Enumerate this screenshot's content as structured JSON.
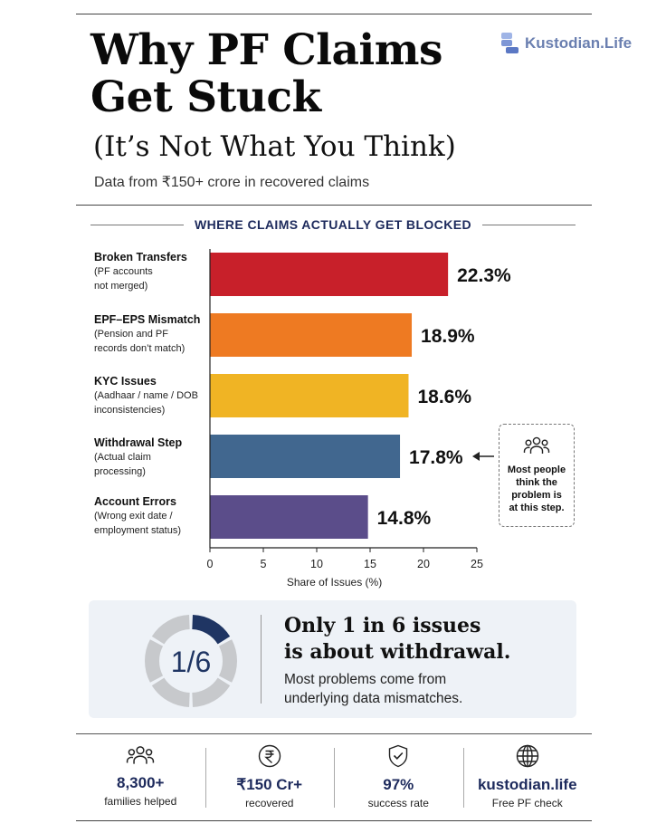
{
  "header": {
    "title_line1": "Why PF Claims",
    "title_line2": "Get Stuck",
    "subtitle": "(It’s Not What You Think)",
    "tagline": "Data from ₹150+ crore in recovered claims",
    "brand": "Kustodian.Life"
  },
  "section_title": "WHERE CLAIMS ACTUALLY GET BLOCKED",
  "chart_data": {
    "type": "bar",
    "orientation": "horizontal",
    "categories": [
      "Broken Transfers",
      "EPF–EPS Mismatch",
      "KYC Issues",
      "Withdrawal Step",
      "Account Errors"
    ],
    "descriptions": [
      [
        "(PF accounts",
        "not merged)"
      ],
      [
        "(Pension and PF",
        "records don’t match)"
      ],
      [
        "(Aadhaar / name / DOB",
        "inconsistencies)"
      ],
      [
        "(Actual claim",
        "processing)"
      ],
      [
        "(Wrong exit date /",
        "employment status)"
      ]
    ],
    "values": [
      22.3,
      18.9,
      18.6,
      17.8,
      14.8
    ],
    "data_labels": [
      "22.3%",
      "18.9%",
      "18.6%",
      "17.8%",
      "14.8%"
    ],
    "colors": [
      "#c8202a",
      "#ee7a22",
      "#f0b424",
      "#41678f",
      "#5b4d8a"
    ],
    "xlabel": "Share of Issues (%)",
    "xticks": [
      0,
      5,
      10,
      15,
      20,
      25
    ],
    "xlim": [
      0,
      25
    ],
    "grid": false
  },
  "callout": {
    "icon": "people-icon",
    "lines": [
      "Most people",
      "think the",
      "problem is",
      "at this step."
    ]
  },
  "stat": {
    "fraction": "1/6",
    "highlight_fraction": 0.1667,
    "headline_line1": "Only 1 in 6 issues",
    "headline_line2": "is about withdrawal.",
    "sub_line1": "Most problems come from",
    "sub_line2": "underlying data mismatches.",
    "color_highlight": "#1f3563",
    "color_rest": "#c7c9cc"
  },
  "footer": [
    {
      "icon": "people-icon",
      "value": "8,300+",
      "label": "families helped"
    },
    {
      "icon": "rupee-icon",
      "value": "₹150 Cr+",
      "label": "recovered"
    },
    {
      "icon": "shield-check-icon",
      "value": "97%",
      "label": "success rate"
    },
    {
      "icon": "globe-icon",
      "value": "kustodian.life",
      "label": "Free PF check"
    }
  ]
}
